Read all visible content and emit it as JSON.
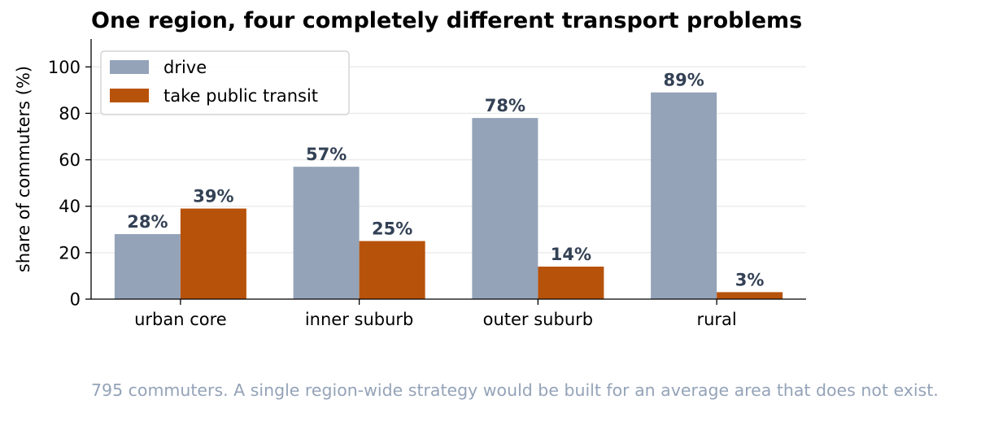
{
  "chart_data": {
    "type": "bar",
    "title": "One region, four completely different transport problems",
    "xlabel": "",
    "ylabel": "share of commuters (%)",
    "categories": [
      "urban core",
      "inner suburb",
      "outer suburb",
      "rural"
    ],
    "series": [
      {
        "name": "drive",
        "values": [
          28,
          57,
          78,
          89
        ],
        "color": "#94a3b8",
        "labels": [
          "28%",
          "57%",
          "78%",
          "89%"
        ]
      },
      {
        "name": "take public transit",
        "values": [
          39,
          25,
          14,
          3
        ],
        "color": "#b7520b",
        "labels": [
          "39%",
          "25%",
          "14%",
          "3%"
        ]
      }
    ],
    "ylim": [
      0,
      112
    ],
    "yticks": [
      0,
      20,
      40,
      60,
      80,
      100
    ],
    "grid": "horizontal",
    "legend_position": "top-left"
  },
  "caption": "795 commuters. A single region-wide strategy would be built for an average area that does not exist."
}
